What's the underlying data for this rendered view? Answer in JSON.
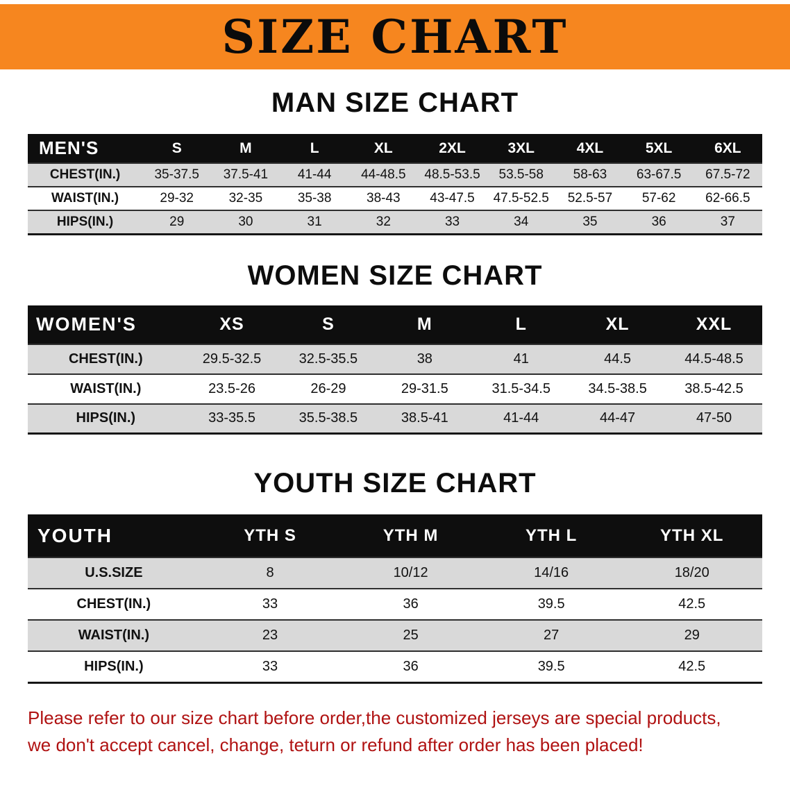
{
  "banner": {
    "title": "SIZE CHART"
  },
  "sections": [
    {
      "heading": "MAN SIZE CHART",
      "table": {
        "label": "MEN'S",
        "columns": [
          "S",
          "M",
          "L",
          "XL",
          "2XL",
          "3XL",
          "4XL",
          "5XL",
          "6XL"
        ],
        "rows": [
          {
            "label": "CHEST(IN.)",
            "values": [
              "35-37.5",
              "37.5-41",
              "41-44",
              "44-48.5",
              "48.5-53.5",
              "53.5-58",
              "58-63",
              "63-67.5",
              "67.5-72"
            ]
          },
          {
            "label": "WAIST(IN.)",
            "values": [
              "29-32",
              "32-35",
              "35-38",
              "38-43",
              "43-47.5",
              "47.5-52.5",
              "52.5-57",
              "57-62",
              "62-66.5"
            ]
          },
          {
            "label": "HIPS(IN.)",
            "values": [
              "29",
              "30",
              "31",
              "32",
              "33",
              "34",
              "35",
              "36",
              "37"
            ]
          }
        ]
      }
    },
    {
      "heading": "WOMEN SIZE CHART",
      "table": {
        "label": "WOMEN'S",
        "columns": [
          "XS",
          "S",
          "M",
          "L",
          "XL",
          "XXL"
        ],
        "rows": [
          {
            "label": "CHEST(IN.)",
            "values": [
              "29.5-32.5",
              "32.5-35.5",
              "38",
              "41",
              "44.5",
              "44.5-48.5"
            ]
          },
          {
            "label": "WAIST(IN.)",
            "values": [
              "23.5-26",
              "26-29",
              "29-31.5",
              "31.5-34.5",
              "34.5-38.5",
              "38.5-42.5"
            ]
          },
          {
            "label": "HIPS(IN.)",
            "values": [
              "33-35.5",
              "35.5-38.5",
              "38.5-41",
              "41-44",
              "44-47",
              "47-50"
            ]
          }
        ]
      }
    },
    {
      "heading": "YOUTH SIZE CHART",
      "table": {
        "label": "YOUTH",
        "columns": [
          "YTH S",
          "YTH M",
          "YTH L",
          "YTH XL"
        ],
        "rows": [
          {
            "label": "U.S.SIZE",
            "values": [
              "8",
              "10/12",
              "14/16",
              "18/20"
            ]
          },
          {
            "label": "CHEST(IN.)",
            "values": [
              "33",
              "36",
              "39.5",
              "42.5"
            ]
          },
          {
            "label": "WAIST(IN.)",
            "values": [
              "23",
              "25",
              "27",
              "29"
            ]
          },
          {
            "label": "HIPS(IN.)",
            "values": [
              "33",
              "36",
              "39.5",
              "42.5"
            ]
          }
        ]
      }
    }
  ],
  "footer": {
    "line1": "Please refer to our size chart before order,the customized jerseys are special products,",
    "line2": "we don't accept cancel, change, teturn or refund after order has been placed!"
  },
  "colors": {
    "banner_bg": "#f6861f",
    "table_header_bg": "#0e0e0e",
    "row_stripe": "#d9d9d9",
    "disclaimer_text": "#b01212"
  }
}
